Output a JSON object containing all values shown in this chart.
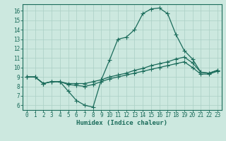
{
  "title": "",
  "xlabel": "Humidex (Indice chaleur)",
  "bg_color": "#cce8df",
  "grid_color": "#aacfc5",
  "line_color": "#1a6b5a",
  "spine_color": "#1a6b5a",
  "xlim": [
    -0.5,
    23.5
  ],
  "ylim": [
    5.5,
    16.7
  ],
  "yticks": [
    6,
    7,
    8,
    9,
    10,
    11,
    12,
    13,
    14,
    15,
    16
  ],
  "xticks": [
    0,
    1,
    2,
    3,
    4,
    5,
    6,
    7,
    8,
    9,
    10,
    11,
    12,
    13,
    14,
    15,
    16,
    17,
    18,
    19,
    20,
    21,
    22,
    23
  ],
  "series1": [
    9.0,
    9.0,
    8.3,
    8.5,
    8.5,
    7.5,
    6.5,
    6.0,
    5.8,
    8.7,
    10.8,
    13.0,
    13.2,
    14.0,
    15.7,
    16.2,
    16.3,
    15.7,
    13.5,
    11.8,
    10.9,
    9.5,
    9.4,
    9.7
  ],
  "series2": [
    9.0,
    9.0,
    8.3,
    8.5,
    8.5,
    8.3,
    8.3,
    8.3,
    8.5,
    8.7,
    9.0,
    9.2,
    9.4,
    9.7,
    9.9,
    10.2,
    10.4,
    10.6,
    10.9,
    11.1,
    10.5,
    9.5,
    9.4,
    9.7
  ],
  "series3": [
    9.0,
    9.0,
    8.3,
    8.5,
    8.5,
    8.2,
    8.1,
    8.0,
    8.2,
    8.5,
    8.8,
    9.0,
    9.2,
    9.4,
    9.6,
    9.8,
    10.0,
    10.2,
    10.4,
    10.6,
    10.0,
    9.3,
    9.3,
    9.6
  ],
  "tick_fontsize": 5.5,
  "xlabel_fontsize": 6.5,
  "marker_size": 2.0,
  "line_width": 0.9
}
